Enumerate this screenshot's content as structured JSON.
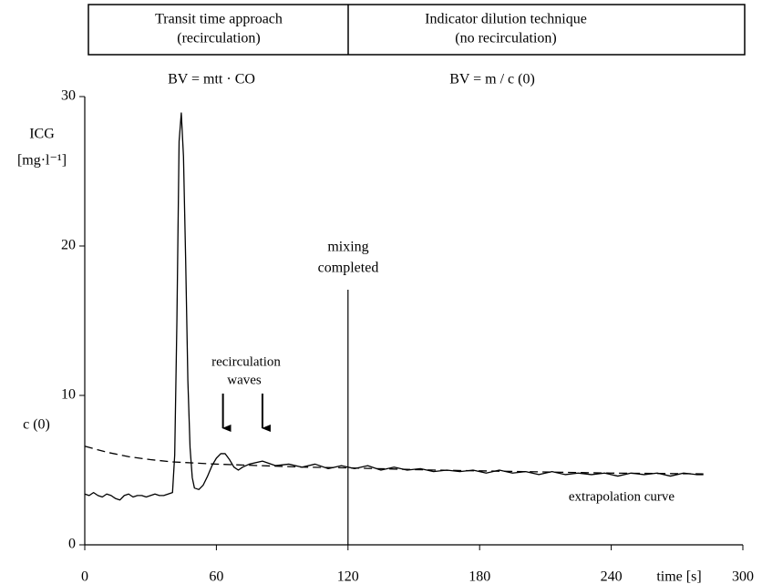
{
  "chart_data": {
    "type": "line",
    "header_boxes": [
      [
        "Transit time approach",
        "(recirculation)"
      ],
      [
        "Indicator dilution technique",
        "(no recirculation)"
      ]
    ],
    "formulas": [
      "BV = mtt · CO",
      "BV = m / c (0)"
    ],
    "y_label": [
      "ICG",
      "[mg·l⁻¹]"
    ],
    "x_label": "time [s]",
    "c0_label": "c (0)",
    "mixing_label": [
      "mixing",
      "completed"
    ],
    "mixing_x": 120,
    "recirculation_label": [
      "recirculation",
      "waves"
    ],
    "arrows_x": [
      63,
      81
    ],
    "extrapolation_label": "extrapolation curve",
    "xlim": [
      0,
      300
    ],
    "ylim": [
      0,
      30
    ],
    "xticks": [
      0,
      60,
      120,
      180,
      240,
      300
    ],
    "yticks": [
      0,
      10,
      20,
      30
    ],
    "series": [
      {
        "color": "#000000",
        "dash": false,
        "x": [
          0,
          2,
          4,
          6,
          8,
          10,
          12,
          14,
          16,
          18,
          20,
          22,
          24,
          26,
          28,
          30,
          32,
          34,
          36,
          38,
          40,
          41,
          42,
          43,
          44,
          45,
          46,
          47,
          48,
          49,
          50,
          52,
          54,
          56,
          58,
          60,
          62,
          64,
          66,
          68,
          70,
          72,
          75,
          81,
          87,
          93,
          99,
          105,
          111,
          117,
          123,
          129,
          135,
          141,
          147,
          153,
          159,
          165,
          171,
          177,
          183,
          189,
          195,
          201,
          207,
          213,
          219,
          225,
          231,
          237,
          243,
          249,
          255,
          261,
          267,
          273,
          279,
          282
        ],
        "values": [
          3.4,
          3.3,
          3.5,
          3.3,
          3.2,
          3.4,
          3.3,
          3.1,
          3.0,
          3.3,
          3.4,
          3.2,
          3.3,
          3.3,
          3.2,
          3.3,
          3.4,
          3.3,
          3.3,
          3.4,
          3.5,
          6,
          15,
          27,
          28.9,
          26,
          19,
          11,
          6.5,
          4.5,
          3.8,
          3.7,
          4.0,
          4.6,
          5.3,
          5.8,
          6.1,
          6.1,
          5.7,
          5.2,
          5.0,
          5.2,
          5.4,
          5.6,
          5.3,
          5.4,
          5.2,
          5.4,
          5.1,
          5.3,
          5.1,
          5.3,
          5.0,
          5.2,
          5.0,
          5.1,
          4.9,
          5.0,
          4.9,
          5.0,
          4.8,
          5.0,
          4.8,
          4.9,
          4.7,
          4.9,
          4.7,
          4.8,
          4.7,
          4.8,
          4.6,
          4.8,
          4.7,
          4.8,
          4.6,
          4.8,
          4.7,
          4.7
        ]
      },
      {
        "color": "#000000",
        "dash": true,
        "x": [
          0,
          5,
          10,
          20,
          30,
          40,
          60,
          80,
          100,
          120,
          160,
          200,
          240,
          282
        ],
        "values": [
          6.6,
          6.4,
          6.2,
          5.9,
          5.7,
          5.55,
          5.4,
          5.3,
          5.2,
          5.15,
          5.0,
          4.9,
          4.8,
          4.75
        ]
      }
    ]
  }
}
